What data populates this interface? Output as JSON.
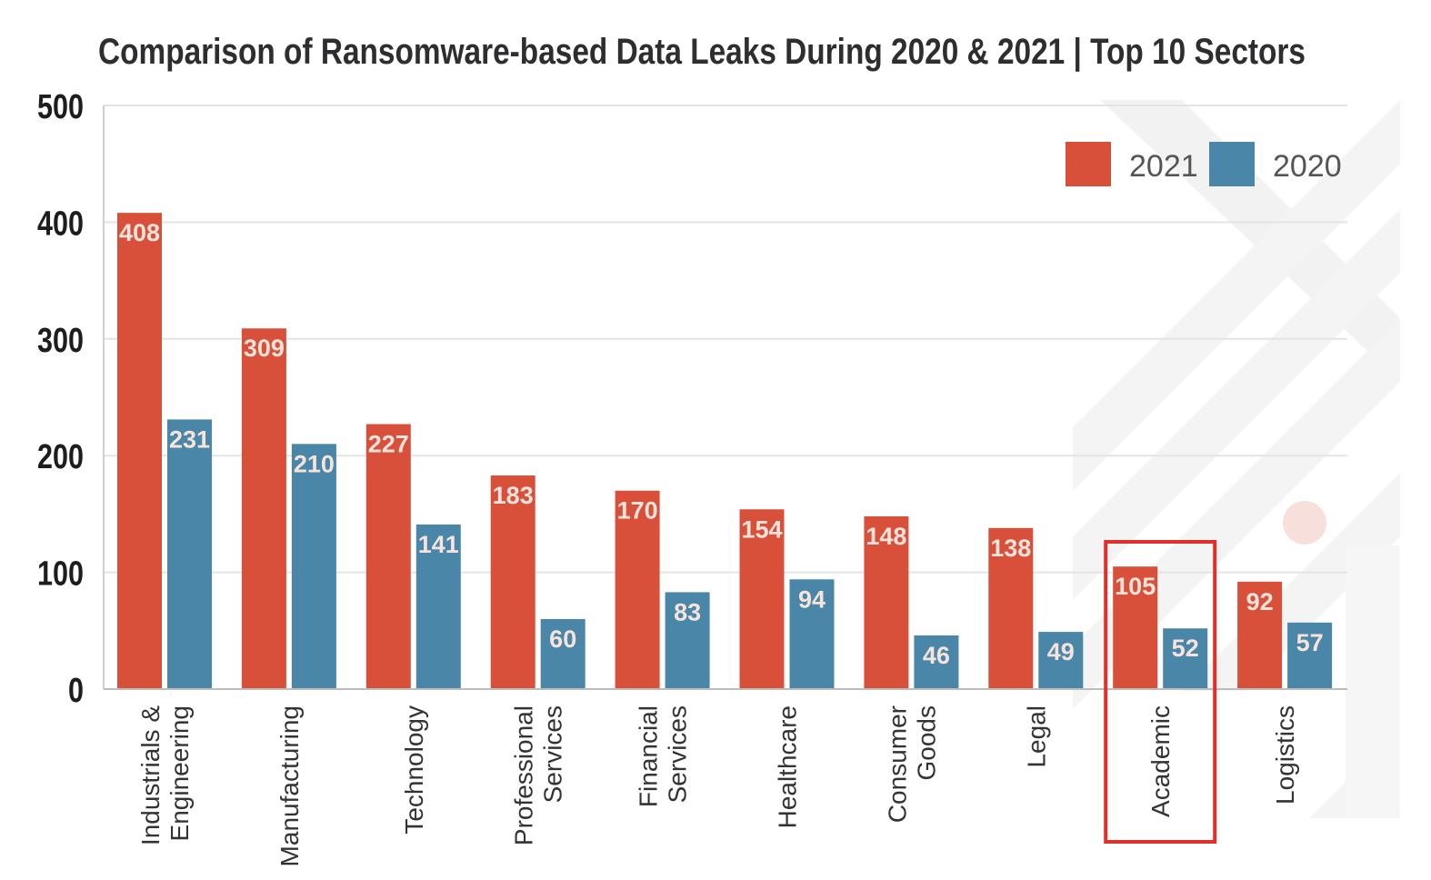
{
  "chart_data": {
    "type": "bar",
    "title": "Comparison of Ransomware-based Data Leaks During 2020 & 2021 | Top 10 Sectors",
    "xlabel": "",
    "ylabel": "",
    "ylim": [
      0,
      500
    ],
    "yticks": [
      "0",
      "100",
      "200",
      "300",
      "400",
      "500"
    ],
    "grid": true,
    "legend_position": "top-right",
    "categories": [
      [
        "Industrials &",
        "Engineering"
      ],
      [
        "Manufacturing"
      ],
      [
        "Technology"
      ],
      [
        "Professional",
        "Services"
      ],
      [
        "Financial",
        "Services"
      ],
      [
        "Healthcare"
      ],
      [
        "Consumer",
        "Goods"
      ],
      [
        "Legal"
      ],
      [
        "Academic"
      ],
      [
        "Logistics"
      ]
    ],
    "series": [
      {
        "name": "2021",
        "color": "#d9503a",
        "values": [
          408,
          309,
          227,
          183,
          170,
          154,
          148,
          138,
          105,
          92
        ]
      },
      {
        "name": "2020",
        "color": "#4a86a8",
        "values": [
          231,
          210,
          141,
          60,
          83,
          94,
          46,
          49,
          52,
          57
        ]
      }
    ],
    "highlight_category_index": 8,
    "highlight_color": "#e0302a"
  }
}
